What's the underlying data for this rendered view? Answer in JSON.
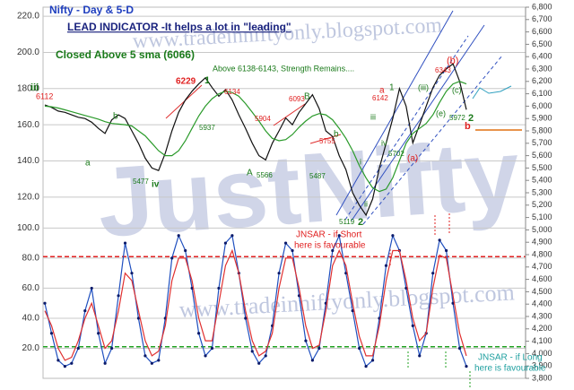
{
  "chart_data": [
    {
      "type": "line",
      "title": "Nifty - Day &  5-D",
      "subtitle": "LEAD INDICATOR -It helps a lot in \"leading\"",
      "watermarks": [
        "www.tradeinniftyonly.blogspot.com",
        "JustNifty"
      ],
      "annotations": [
        "Closed Above 5 sma (6066)",
        "Above  6138-6143,  Strength Remains....",
        "iii",
        "6112",
        "6229",
        "1",
        "6134",
        "5937",
        "5904",
        "6093",
        "B",
        "b",
        "a",
        "5477",
        "iv",
        "5755",
        "A",
        "5566",
        "5487",
        "b",
        "5119",
        "2",
        "i",
        "ii",
        "iii",
        "iv",
        "5702",
        "(a)",
        "a",
        "1",
        "6142",
        "(iii)",
        "(c)",
        "(b)",
        "6343",
        "(e)",
        "5972",
        "2",
        "b"
      ],
      "ylim": [
        112.5,
        225
      ],
      "yticks": [
        {
          "value": 220,
          "label": "220.0"
        },
        {
          "value": 200,
          "label": "200.0"
        },
        {
          "value": 180,
          "label": "180.0"
        },
        {
          "value": 160,
          "label": "160.0"
        },
        {
          "value": 140,
          "label": "140.0"
        },
        {
          "value": 120,
          "label": "120.0"
        }
      ],
      "y2lim": [
        3800,
        6800
      ],
      "y2ticks": [
        {
          "value": 6800,
          "label": "6,800"
        },
        {
          "value": 6700,
          "label": "6,700"
        },
        {
          "value": 6600,
          "label": "6,600"
        },
        {
          "value": 6500,
          "label": "6,500"
        },
        {
          "value": 6400,
          "label": "6,400"
        },
        {
          "value": 6300,
          "label": "6,300"
        },
        {
          "value": 6200,
          "label": "6,200"
        },
        {
          "value": 6100,
          "label": "6,100"
        },
        {
          "value": 6000,
          "label": "6,000"
        },
        {
          "value": 5900,
          "label": "5,900"
        },
        {
          "value": 5800,
          "label": "5,800"
        },
        {
          "value": 5700,
          "label": "5,700"
        },
        {
          "value": 5600,
          "label": "5,600"
        },
        {
          "value": 5500,
          "label": "5,500"
        },
        {
          "value": 5400,
          "label": "5,400"
        },
        {
          "value": 5300,
          "label": "5,300"
        },
        {
          "value": 5200,
          "label": "5,200"
        },
        {
          "value": 5100,
          "label": "5,100"
        },
        {
          "value": 5000,
          "label": "5,000"
        },
        {
          "value": 4900,
          "label": "4,900"
        },
        {
          "value": 4800,
          "label": "4,800"
        },
        {
          "value": 4700,
          "label": "4,700"
        },
        {
          "value": 4600,
          "label": "4,600"
        },
        {
          "value": 4500,
          "label": "4,500"
        },
        {
          "value": 4400,
          "label": "4,400"
        },
        {
          "value": 4300,
          "label": "4,300"
        },
        {
          "value": 4200,
          "label": "4,200"
        },
        {
          "value": 4100,
          "label": "4,100"
        },
        {
          "value": 4000,
          "label": "4,000"
        },
        {
          "value": 3900,
          "label": "3,900"
        },
        {
          "value": 3800,
          "label": "3,800"
        }
      ],
      "grid": true,
      "series": [
        {
          "color": "#111111",
          "axis": "y2",
          "values": [
            6010,
            5990,
            5960,
            5950,
            5930,
            5910,
            5900,
            5870,
            5820,
            5780,
            5890,
            5930,
            5900,
            5800,
            5700,
            5580,
            5500,
            5480,
            5620,
            5800,
            5950,
            6050,
            6120,
            6180,
            6229,
            6150,
            6080,
            6134,
            6050,
            5930,
            5820,
            5700,
            5600,
            5566,
            5700,
            5800,
            5904,
            5850,
            5950,
            6020,
            6093,
            5980,
            5800,
            5755,
            5600,
            5487,
            5300,
            5200,
            5119,
            5250,
            5500,
            5700,
            5900,
            6142,
            6000,
            5702,
            5850,
            6000,
            6150,
            6250,
            6300,
            6343,
            6200,
            5972
          ]
        },
        {
          "color": "#2a9a2a",
          "axis": "y2",
          "values": [
            6000,
            5995,
            5985,
            5970,
            5955,
            5940,
            5925,
            5910,
            5895,
            5875,
            5860,
            5855,
            5850,
            5840,
            5800,
            5760,
            5700,
            5640,
            5600,
            5600,
            5640,
            5720,
            5820,
            5920,
            6000,
            6060,
            6100,
            6120,
            6110,
            6080,
            6020,
            5950,
            5880,
            5800,
            5740,
            5720,
            5730,
            5770,
            5830,
            5880,
            5920,
            5940,
            5930,
            5890,
            5820,
            5740,
            5640,
            5520,
            5420,
            5340,
            5310,
            5330,
            5420,
            5560,
            5700,
            5780,
            5820,
            5860,
            5930,
            6030,
            6120,
            6180,
            6200,
            6180
          ]
        }
      ]
    },
    {
      "type": "line",
      "watermarks": [
        "www.tradeinniftyonly.blogspot.com"
      ],
      "annotations": [
        "JNSAR -  if Short",
        "here is favourable",
        "JNSAR -  if Long",
        "here is favourable"
      ],
      "ylim": [
        0,
        105
      ],
      "yticks": [
        {
          "value": 100,
          "label": "100.0"
        },
        {
          "value": 80,
          "label": "80.0"
        },
        {
          "value": 60,
          "label": "60.0"
        },
        {
          "value": 40,
          "label": "40.0"
        },
        {
          "value": 20,
          "label": "20.0"
        }
      ],
      "grid": true,
      "reference_lines": [
        {
          "value": 81,
          "color": "#e02020"
        },
        {
          "value": 21,
          "color": "#20a020"
        }
      ],
      "series": [
        {
          "color": "#1f4fbf",
          "markers": true,
          "values": [
            50,
            30,
            12,
            8,
            10,
            20,
            45,
            60,
            30,
            10,
            20,
            55,
            90,
            70,
            40,
            15,
            10,
            12,
            40,
            80,
            95,
            85,
            60,
            30,
            15,
            20,
            60,
            90,
            95,
            70,
            40,
            18,
            10,
            15,
            35,
            70,
            90,
            85,
            55,
            25,
            12,
            20,
            50,
            85,
            95,
            70,
            45,
            20,
            8,
            12,
            40,
            75,
            95,
            85,
            60,
            35,
            15,
            30,
            70,
            92,
            85,
            50,
            20,
            8
          ]
        },
        {
          "color": "#e03030",
          "values": [
            45,
            35,
            20,
            12,
            14,
            25,
            40,
            50,
            35,
            20,
            25,
            45,
            70,
            65,
            45,
            25,
            15,
            18,
            35,
            65,
            80,
            80,
            65,
            40,
            25,
            25,
            50,
            75,
            85,
            70,
            45,
            25,
            15,
            18,
            30,
            60,
            80,
            80,
            60,
            35,
            20,
            22,
            45,
            75,
            85,
            75,
            50,
            28,
            15,
            15,
            35,
            65,
            85,
            85,
            65,
            40,
            25,
            30,
            60,
            82,
            80,
            55,
            30,
            15
          ]
        }
      ]
    }
  ]
}
